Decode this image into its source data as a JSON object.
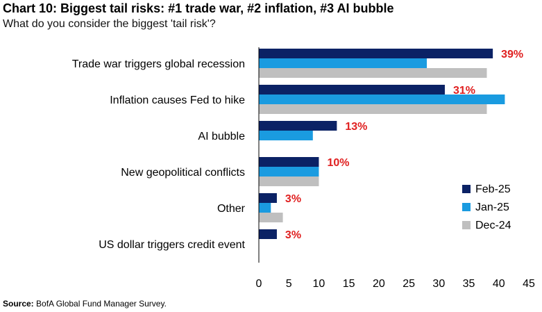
{
  "header": {
    "title": "Chart 10: Biggest tail risks: #1 trade war, #2 inflation, #3 AI bubble",
    "subtitle": "What do you consider the biggest 'tail risk'?"
  },
  "footer": {
    "source_label": "Source:",
    "source_text": " BofA Global Fund Manager Survey."
  },
  "chart_data": {
    "type": "bar",
    "orientation": "horizontal",
    "categories": [
      "Trade war triggers global recession",
      "Inflation causes Fed to hike",
      "AI bubble",
      "New geopolitical conflicts",
      "Other",
      "US dollar triggers credit event"
    ],
    "series": [
      {
        "name": "Feb-25",
        "color": "#0b2265",
        "values": [
          39,
          31,
          13,
          10,
          3,
          3
        ]
      },
      {
        "name": "Jan-25",
        "color": "#1a9be0",
        "values": [
          28,
          41,
          9,
          10,
          2,
          0
        ]
      },
      {
        "name": "Dec-24",
        "color": "#bfbfbf",
        "values": [
          38,
          38,
          0,
          10,
          4,
          0
        ]
      }
    ],
    "data_labels": [
      "39%",
      "31%",
      "13%",
      "10%",
      "3%",
      "3%"
    ],
    "data_label_color": "#e02020",
    "xlim": [
      0,
      45
    ],
    "xticks": [
      "0",
      "5",
      "10",
      "15",
      "20",
      "25",
      "30",
      "35",
      "40",
      "45"
    ],
    "grid": false,
    "legend_position": "right"
  }
}
